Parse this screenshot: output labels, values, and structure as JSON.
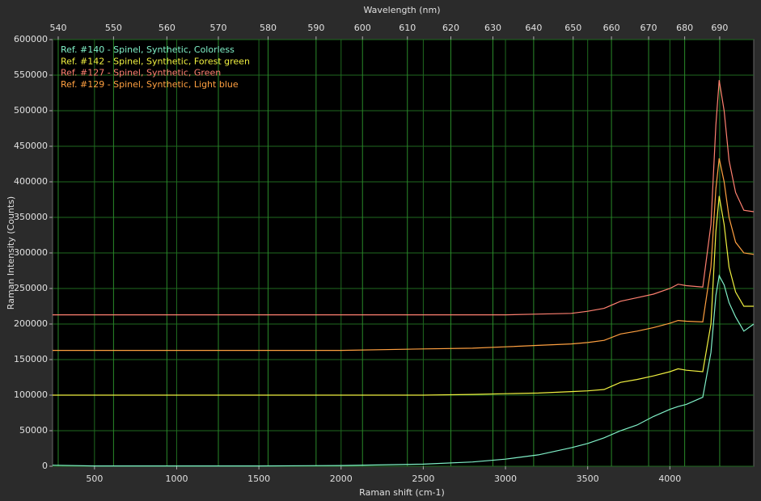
{
  "chart_data": {
    "type": "line",
    "title_top": "Wavelength (nm)",
    "xlabel": "Raman shift (cm-1)",
    "ylabel": "Raman Intensity (Counts)",
    "x": [
      245,
      500,
      1000,
      1500,
      2000,
      2500,
      2800,
      3000,
      3200,
      3400,
      3500,
      3600,
      3700,
      3800,
      3900,
      4000,
      4050,
      4100,
      4200,
      4250,
      4280,
      4300,
      4330,
      4360,
      4400,
      4450,
      4510
    ],
    "series": [
      {
        "name": "Ref. #140 - Spinel, Synthetic, Colorless",
        "color": "#80f0c8",
        "values": [
          1500,
          500,
          500,
          500,
          1000,
          3000,
          6000,
          10000,
          16000,
          26000,
          32000,
          40000,
          50000,
          58000,
          70000,
          80000,
          84000,
          87000,
          97000,
          160000,
          240000,
          268000,
          255000,
          230000,
          210000,
          190000,
          200000
        ]
      },
      {
        "name": "Ref. #142 - Spinel, Synthetic, Forest green",
        "color": "#f0f040",
        "values": [
          100000,
          100000,
          100000,
          100000,
          100000,
          100000,
          101000,
          102000,
          103000,
          105000,
          106000,
          108000,
          118000,
          122000,
          127000,
          133000,
          137000,
          135000,
          133000,
          200000,
          330000,
          380000,
          340000,
          280000,
          245000,
          225000,
          225000
        ]
      },
      {
        "name": "Ref. #127 - Spinel, Synthetic, Green",
        "color": "#ff8070",
        "values": [
          213000,
          213000,
          213000,
          213000,
          213000,
          213000,
          213000,
          213000,
          214000,
          215000,
          218000,
          222000,
          232000,
          237000,
          242000,
          250000,
          256000,
          254000,
          252000,
          340000,
          480000,
          543000,
          500000,
          430000,
          385000,
          360000,
          358000
        ]
      },
      {
        "name": "Ref. #129 - Spinel, Synthetic, Light blue",
        "color": "#ffa040",
        "values": [
          163000,
          163000,
          163000,
          163000,
          163000,
          165000,
          166000,
          168000,
          170000,
          172000,
          174000,
          177000,
          186000,
          190000,
          195000,
          201000,
          205000,
          204000,
          203000,
          280000,
          390000,
          433000,
          400000,
          350000,
          315000,
          300000,
          298000
        ]
      }
    ],
    "xlim": [
      245,
      4510
    ],
    "xticks": [
      500,
      1000,
      1500,
      2000,
      2500,
      3000,
      3500,
      4000
    ],
    "x2lim": [
      539,
      700
    ],
    "x2scale": "reciprocal",
    "x2ticks": [
      540,
      550,
      560,
      570,
      580,
      590,
      600,
      610,
      620,
      630,
      640,
      650,
      660,
      670,
      680,
      690
    ],
    "ylim": [
      0,
      600000
    ],
    "yticks": [
      0,
      50000,
      100000,
      150000,
      200000,
      250000,
      300000,
      350000,
      400000,
      450000,
      500000,
      550000,
      600000
    ],
    "grid": true,
    "legend": "top-left"
  }
}
